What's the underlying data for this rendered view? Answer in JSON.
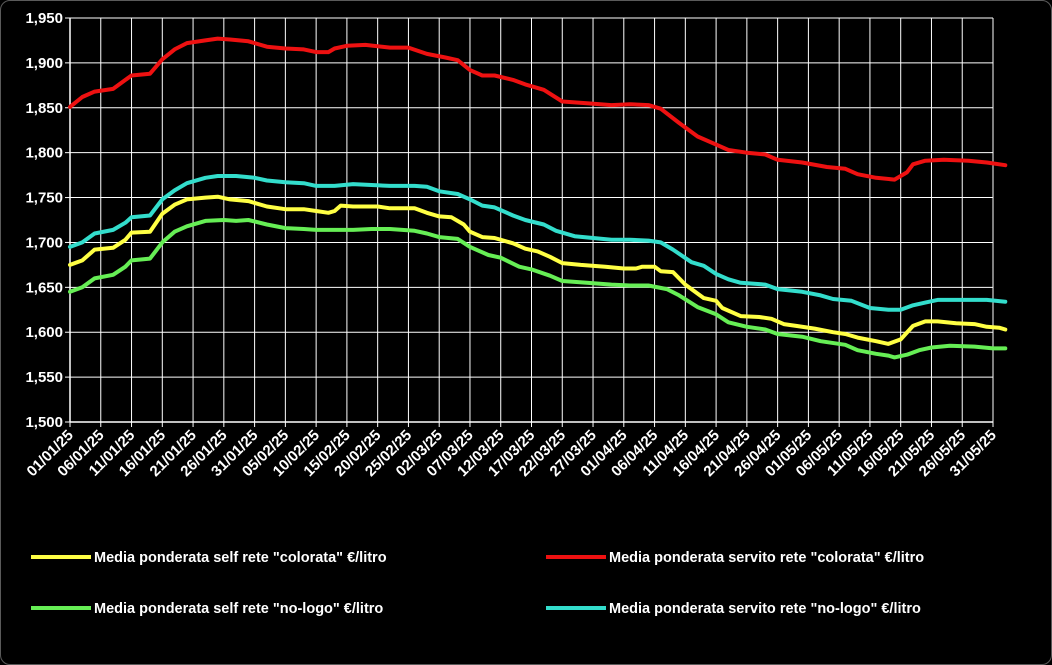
{
  "chart_data": {
    "type": "line",
    "title": "",
    "xlabel": "",
    "ylabel": "",
    "ylim": [
      1.5,
      1.95
    ],
    "yticks": [
      1.5,
      1.55,
      1.6,
      1.65,
      1.7,
      1.75,
      1.8,
      1.85,
      1.9,
      1.95
    ],
    "ytick_labels": [
      "1,500",
      "1,550",
      "1,600",
      "1,650",
      "1,700",
      "1,750",
      "1,800",
      "1,850",
      "1,900",
      "1,950"
    ],
    "xtick_labels": [
      "01/01/25",
      "06/01/25",
      "11/01/25",
      "16/01/25",
      "21/01/25",
      "26/01/25",
      "31/01/25",
      "05/02/25",
      "10/02/25",
      "15/02/25",
      "20/02/25",
      "25/02/25",
      "02/03/25",
      "07/03/25",
      "12/03/25",
      "17/03/25",
      "22/03/25",
      "27/03/25",
      "01/04/25",
      "06/04/25",
      "11/04/25",
      "16/04/25",
      "21/04/25",
      "26/04/25",
      "01/05/25",
      "06/05/25",
      "11/05/25",
      "16/05/25",
      "21/05/25",
      "26/05/25",
      "31/05/25"
    ],
    "grid": true,
    "legend_position": "bottom",
    "series": [
      {
        "name": "Media ponderata self rete \"colorata\" €/litro",
        "color": "#ffff44",
        "points": [
          [
            "01/01/25",
            1.675
          ],
          [
            "03/01/25",
            1.68
          ],
          [
            "05/01/25",
            1.692
          ],
          [
            "08/01/25",
            1.694
          ],
          [
            "10/01/25",
            1.703
          ],
          [
            "11/01/25",
            1.711
          ],
          [
            "14/01/25",
            1.712
          ],
          [
            "16/01/25",
            1.732
          ],
          [
            "18/01/25",
            1.742
          ],
          [
            "20/01/25",
            1.748
          ],
          [
            "23/01/25",
            1.75
          ],
          [
            "25/01/25",
            1.751
          ],
          [
            "27/01/25",
            1.748
          ],
          [
            "30/01/25",
            1.746
          ],
          [
            "02/02/25",
            1.74
          ],
          [
            "05/02/25",
            1.737
          ],
          [
            "08/02/25",
            1.737
          ],
          [
            "10/02/25",
            1.735
          ],
          [
            "12/02/25",
            1.733
          ],
          [
            "13/02/25",
            1.735
          ],
          [
            "14/02/25",
            1.741
          ],
          [
            "16/02/25",
            1.74
          ],
          [
            "20/02/25",
            1.74
          ],
          [
            "22/02/25",
            1.738
          ],
          [
            "26/02/25",
            1.738
          ],
          [
            "28/02/25",
            1.733
          ],
          [
            "02/03/25",
            1.729
          ],
          [
            "04/03/25",
            1.728
          ],
          [
            "06/03/25",
            1.72
          ],
          [
            "07/03/25",
            1.712
          ],
          [
            "09/03/25",
            1.706
          ],
          [
            "11/03/25",
            1.705
          ],
          [
            "14/03/25",
            1.699
          ],
          [
            "16/03/25",
            1.693
          ],
          [
            "18/03/25",
            1.69
          ],
          [
            "20/03/25",
            1.684
          ],
          [
            "22/03/25",
            1.677
          ],
          [
            "25/03/25",
            1.675
          ],
          [
            "29/03/25",
            1.673
          ],
          [
            "01/04/25",
            1.671
          ],
          [
            "03/04/25",
            1.671
          ],
          [
            "04/04/25",
            1.673
          ],
          [
            "06/04/25",
            1.673
          ],
          [
            "07/04/25",
            1.668
          ],
          [
            "09/04/25",
            1.667
          ],
          [
            "11/04/25",
            1.653
          ],
          [
            "14/04/25",
            1.638
          ],
          [
            "16/04/25",
            1.635
          ],
          [
            "17/04/25",
            1.627
          ],
          [
            "20/04/25",
            1.618
          ],
          [
            "23/04/25",
            1.617
          ],
          [
            "25/04/25",
            1.615
          ],
          [
            "27/04/25",
            1.609
          ],
          [
            "29/04/25",
            1.607
          ],
          [
            "02/05/25",
            1.604
          ],
          [
            "05/05/25",
            1.6
          ],
          [
            "07/05/25",
            1.598
          ],
          [
            "09/05/25",
            1.594
          ],
          [
            "12/05/25",
            1.59
          ],
          [
            "14/05/25",
            1.587
          ],
          [
            "16/05/25",
            1.592
          ],
          [
            "18/05/25",
            1.607
          ],
          [
            "20/05/25",
            1.612
          ],
          [
            "22/05/25",
            1.612
          ],
          [
            "25/05/25",
            1.61
          ],
          [
            "28/05/25",
            1.609
          ],
          [
            "30/05/25",
            1.606
          ],
          [
            "01/06/25",
            1.605
          ],
          [
            "02/06/25",
            1.603
          ]
        ]
      },
      {
        "name": "Media ponderata servito rete \"colorata\" €/litro",
        "color": "#ee1111",
        "points": [
          [
            "01/01/25",
            1.851
          ],
          [
            "03/01/25",
            1.862
          ],
          [
            "05/01/25",
            1.868
          ],
          [
            "08/01/25",
            1.871
          ],
          [
            "10/01/25",
            1.881
          ],
          [
            "11/01/25",
            1.886
          ],
          [
            "14/01/25",
            1.888
          ],
          [
            "16/01/25",
            1.904
          ],
          [
            "18/01/25",
            1.915
          ],
          [
            "20/01/25",
            1.922
          ],
          [
            "23/01/25",
            1.925
          ],
          [
            "25/01/25",
            1.927
          ],
          [
            "27/01/25",
            1.926
          ],
          [
            "30/01/25",
            1.924
          ],
          [
            "02/02/25",
            1.918
          ],
          [
            "05/02/25",
            1.916
          ],
          [
            "08/02/25",
            1.915
          ],
          [
            "10/02/25",
            1.912
          ],
          [
            "12/02/25",
            1.912
          ],
          [
            "13/02/25",
            1.916
          ],
          [
            "15/02/25",
            1.919
          ],
          [
            "18/02/25",
            1.92
          ],
          [
            "22/02/25",
            1.917
          ],
          [
            "25/02/25",
            1.917
          ],
          [
            "28/02/25",
            1.91
          ],
          [
            "03/03/25",
            1.906
          ],
          [
            "05/03/25",
            1.903
          ],
          [
            "07/03/25",
            1.892
          ],
          [
            "09/03/25",
            1.886
          ],
          [
            "11/03/25",
            1.886
          ],
          [
            "14/03/25",
            1.881
          ],
          [
            "16/03/25",
            1.876
          ],
          [
            "19/03/25",
            1.87
          ],
          [
            "22/03/25",
            1.857
          ],
          [
            "26/03/25",
            1.855
          ],
          [
            "30/03/25",
            1.853
          ],
          [
            "02/04/25",
            1.854
          ],
          [
            "05/04/25",
            1.853
          ],
          [
            "07/04/25",
            1.849
          ],
          [
            "10/04/25",
            1.833
          ],
          [
            "13/04/25",
            1.818
          ],
          [
            "16/04/25",
            1.809
          ],
          [
            "18/04/25",
            1.803
          ],
          [
            "21/04/25",
            1.8
          ],
          [
            "24/04/25",
            1.798
          ],
          [
            "26/04/25",
            1.792
          ],
          [
            "30/04/25",
            1.789
          ],
          [
            "04/05/25",
            1.784
          ],
          [
            "07/05/25",
            1.782
          ],
          [
            "09/05/25",
            1.776
          ],
          [
            "12/05/25",
            1.772
          ],
          [
            "15/05/25",
            1.77
          ],
          [
            "17/05/25",
            1.778
          ],
          [
            "18/05/25",
            1.787
          ],
          [
            "20/05/25",
            1.791
          ],
          [
            "23/05/25",
            1.792
          ],
          [
            "27/05/25",
            1.791
          ],
          [
            "30/05/25",
            1.789
          ],
          [
            "02/06/25",
            1.786
          ]
        ]
      },
      {
        "name": "Media ponderata self rete \"no-logo\" €/litro",
        "color": "#66ee55",
        "points": [
          [
            "01/01/25",
            1.645
          ],
          [
            "03/01/25",
            1.65
          ],
          [
            "05/01/25",
            1.66
          ],
          [
            "08/01/25",
            1.664
          ],
          [
            "10/01/25",
            1.673
          ],
          [
            "11/01/25",
            1.68
          ],
          [
            "14/01/25",
            1.682
          ],
          [
            "16/01/25",
            1.7
          ],
          [
            "18/01/25",
            1.712
          ],
          [
            "20/01/25",
            1.718
          ],
          [
            "23/01/25",
            1.724
          ],
          [
            "26/01/25",
            1.725
          ],
          [
            "28/01/25",
            1.724
          ],
          [
            "30/01/25",
            1.725
          ],
          [
            "02/02/25",
            1.72
          ],
          [
            "05/02/25",
            1.716
          ],
          [
            "08/02/25",
            1.715
          ],
          [
            "10/02/25",
            1.714
          ],
          [
            "13/02/25",
            1.714
          ],
          [
            "16/02/25",
            1.714
          ],
          [
            "19/02/25",
            1.715
          ],
          [
            "22/02/25",
            1.715
          ],
          [
            "26/02/25",
            1.713
          ],
          [
            "28/02/25",
            1.71
          ],
          [
            "02/03/25",
            1.706
          ],
          [
            "05/03/25",
            1.704
          ],
          [
            "07/03/25",
            1.695
          ],
          [
            "10/03/25",
            1.686
          ],
          [
            "12/03/25",
            1.683
          ],
          [
            "15/03/25",
            1.673
          ],
          [
            "17/03/25",
            1.67
          ],
          [
            "20/03/25",
            1.663
          ],
          [
            "22/03/25",
            1.657
          ],
          [
            "26/03/25",
            1.655
          ],
          [
            "30/03/25",
            1.653
          ],
          [
            "02/04/25",
            1.652
          ],
          [
            "05/04/25",
            1.652
          ],
          [
            "08/04/25",
            1.648
          ],
          [
            "10/04/25",
            1.641
          ],
          [
            "13/04/25",
            1.628
          ],
          [
            "16/04/25",
            1.62
          ],
          [
            "18/04/25",
            1.611
          ],
          [
            "21/04/25",
            1.606
          ],
          [
            "24/04/25",
            1.603
          ],
          [
            "26/04/25",
            1.598
          ],
          [
            "30/04/25",
            1.595
          ],
          [
            "03/05/25",
            1.59
          ],
          [
            "07/05/25",
            1.586
          ],
          [
            "09/05/25",
            1.58
          ],
          [
            "12/05/25",
            1.576
          ],
          [
            "14/05/25",
            1.574
          ],
          [
            "15/05/25",
            1.572
          ],
          [
            "17/05/25",
            1.575
          ],
          [
            "19/05/25",
            1.58
          ],
          [
            "21/05/25",
            1.583
          ],
          [
            "24/05/25",
            1.585
          ],
          [
            "28/05/25",
            1.584
          ],
          [
            "31/05/25",
            1.582
          ],
          [
            "02/06/25",
            1.582
          ]
        ]
      },
      {
        "name": "Media ponderata servito rete \"no-logo\" €/litro",
        "color": "#33ddcc",
        "points": [
          [
            "01/01/25",
            1.695
          ],
          [
            "03/01/25",
            1.7
          ],
          [
            "05/01/25",
            1.71
          ],
          [
            "08/01/25",
            1.714
          ],
          [
            "10/01/25",
            1.722
          ],
          [
            "11/01/25",
            1.728
          ],
          [
            "14/01/25",
            1.73
          ],
          [
            "16/01/25",
            1.748
          ],
          [
            "18/01/25",
            1.758
          ],
          [
            "20/01/25",
            1.766
          ],
          [
            "23/01/25",
            1.772
          ],
          [
            "25/01/25",
            1.774
          ],
          [
            "28/01/25",
            1.774
          ],
          [
            "31/01/25",
            1.772
          ],
          [
            "02/02/25",
            1.769
          ],
          [
            "05/02/25",
            1.767
          ],
          [
            "08/02/25",
            1.766
          ],
          [
            "10/02/25",
            1.763
          ],
          [
            "13/02/25",
            1.763
          ],
          [
            "16/02/25",
            1.765
          ],
          [
            "19/02/25",
            1.764
          ],
          [
            "22/02/25",
            1.763
          ],
          [
            "26/02/25",
            1.763
          ],
          [
            "28/02/25",
            1.762
          ],
          [
            "02/03/25",
            1.757
          ],
          [
            "05/03/25",
            1.754
          ],
          [
            "07/03/25",
            1.748
          ],
          [
            "09/03/25",
            1.741
          ],
          [
            "11/03/25",
            1.739
          ],
          [
            "14/03/25",
            1.73
          ],
          [
            "16/03/25",
            1.725
          ],
          [
            "19/03/25",
            1.72
          ],
          [
            "21/03/25",
            1.713
          ],
          [
            "24/03/25",
            1.707
          ],
          [
            "27/03/25",
            1.705
          ],
          [
            "30/03/25",
            1.703
          ],
          [
            "02/04/25",
            1.703
          ],
          [
            "05/04/25",
            1.702
          ],
          [
            "07/04/25",
            1.7
          ],
          [
            "09/04/25",
            1.692
          ],
          [
            "12/04/25",
            1.678
          ],
          [
            "14/04/25",
            1.674
          ],
          [
            "16/04/25",
            1.665
          ],
          [
            "18/04/25",
            1.659
          ],
          [
            "20/04/25",
            1.655
          ],
          [
            "24/04/25",
            1.653
          ],
          [
            "26/04/25",
            1.648
          ],
          [
            "30/04/25",
            1.645
          ],
          [
            "03/05/25",
            1.641
          ],
          [
            "05/05/25",
            1.637
          ],
          [
            "08/05/25",
            1.635
          ],
          [
            "11/05/25",
            1.627
          ],
          [
            "14/05/25",
            1.625
          ],
          [
            "16/05/25",
            1.625
          ],
          [
            "18/05/25",
            1.63
          ],
          [
            "20/05/25",
            1.633
          ],
          [
            "22/05/25",
            1.636
          ],
          [
            "26/05/25",
            1.636
          ],
          [
            "30/05/25",
            1.636
          ],
          [
            "02/06/25",
            1.634
          ]
        ]
      }
    ]
  }
}
